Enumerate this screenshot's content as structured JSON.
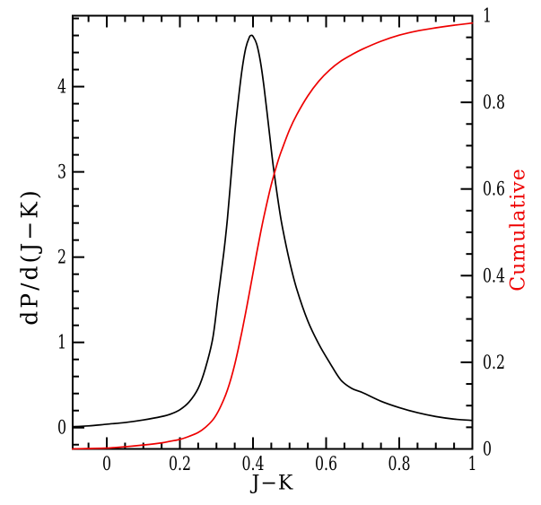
{
  "figure": {
    "background": "#ffffff",
    "axis_color": "#000000"
  },
  "chart_data": {
    "type": "line",
    "title": "",
    "xlabel": "J−K",
    "ylabel_left": "dP/d(J−K)",
    "ylabel_right": "Cumulative",
    "grid": false,
    "legend": "none",
    "x_range": [
      -0.0933,
      1.0
    ],
    "y_left_range": [
      -0.25,
      4.832
    ],
    "y_right_range": [
      0,
      1
    ],
    "x_ticks": {
      "major": [
        0,
        0.2,
        0.4,
        0.6,
        0.8,
        1.0
      ],
      "labels": [
        "0",
        "0.2",
        "0.4",
        "0.6",
        "0.8",
        "1"
      ],
      "minor_step": 0.05
    },
    "y_left_ticks": {
      "major": [
        0,
        1,
        2,
        3,
        4
      ],
      "labels": [
        "0",
        "1",
        "2",
        "3",
        "4"
      ],
      "minor_step": 0.2
    },
    "y_right_ticks": {
      "major": [
        0,
        0.2,
        0.4,
        0.6,
        0.8,
        1.0
      ],
      "labels": [
        "0",
        "0.2",
        "0.4",
        "0.6",
        "0.8",
        "1"
      ],
      "minor_step": 0.05
    },
    "series": [
      {
        "name": "dP/d(J−K)",
        "axis": "left",
        "color": "#000000",
        "x": [
          -0.1,
          -0.05,
          0.0,
          0.05,
          0.1,
          0.15,
          0.175,
          0.2,
          0.225,
          0.25,
          0.27,
          0.29,
          0.305,
          0.32,
          0.33,
          0.34,
          0.35,
          0.36,
          0.37,
          0.38,
          0.39,
          0.395,
          0.4,
          0.41,
          0.42,
          0.43,
          0.445,
          0.455,
          0.47,
          0.48,
          0.5,
          0.52,
          0.55,
          0.58,
          0.61,
          0.64,
          0.67,
          0.7,
          0.75,
          0.8,
          0.85,
          0.9,
          0.95,
          1.0
        ],
        "y": [
          0.01,
          0.02,
          0.04,
          0.06,
          0.09,
          0.13,
          0.16,
          0.21,
          0.3,
          0.46,
          0.7,
          1.05,
          1.55,
          2.05,
          2.45,
          2.95,
          3.45,
          3.85,
          4.2,
          4.45,
          4.58,
          4.6,
          4.59,
          4.5,
          4.3,
          4.0,
          3.45,
          3.08,
          2.62,
          2.36,
          1.95,
          1.62,
          1.25,
          0.98,
          0.76,
          0.56,
          0.46,
          0.41,
          0.31,
          0.235,
          0.175,
          0.13,
          0.1,
          0.085
        ]
      },
      {
        "name": "Cumulative",
        "axis": "right",
        "color": "#ee0000",
        "x": [
          -0.1,
          -0.05,
          0.0,
          0.05,
          0.1,
          0.15,
          0.175,
          0.2,
          0.225,
          0.25,
          0.27,
          0.29,
          0.305,
          0.32,
          0.33,
          0.34,
          0.35,
          0.36,
          0.37,
          0.38,
          0.39,
          0.395,
          0.4,
          0.41,
          0.42,
          0.43,
          0.445,
          0.455,
          0.47,
          0.48,
          0.5,
          0.52,
          0.55,
          0.58,
          0.61,
          0.64,
          0.67,
          0.7,
          0.75,
          0.8,
          0.85,
          0.9,
          0.95,
          1.0
        ],
        "y": [
          0.0,
          0.001,
          0.002,
          0.005,
          0.009,
          0.014,
          0.018,
          0.022,
          0.029,
          0.038,
          0.05,
          0.067,
          0.087,
          0.114,
          0.136,
          0.163,
          0.195,
          0.232,
          0.272,
          0.315,
          0.36,
          0.383,
          0.406,
          0.452,
          0.496,
          0.537,
          0.593,
          0.626,
          0.669,
          0.693,
          0.737,
          0.772,
          0.815,
          0.849,
          0.875,
          0.895,
          0.91,
          0.923,
          0.941,
          0.955,
          0.965,
          0.972,
          0.978,
          0.983
        ]
      }
    ]
  }
}
